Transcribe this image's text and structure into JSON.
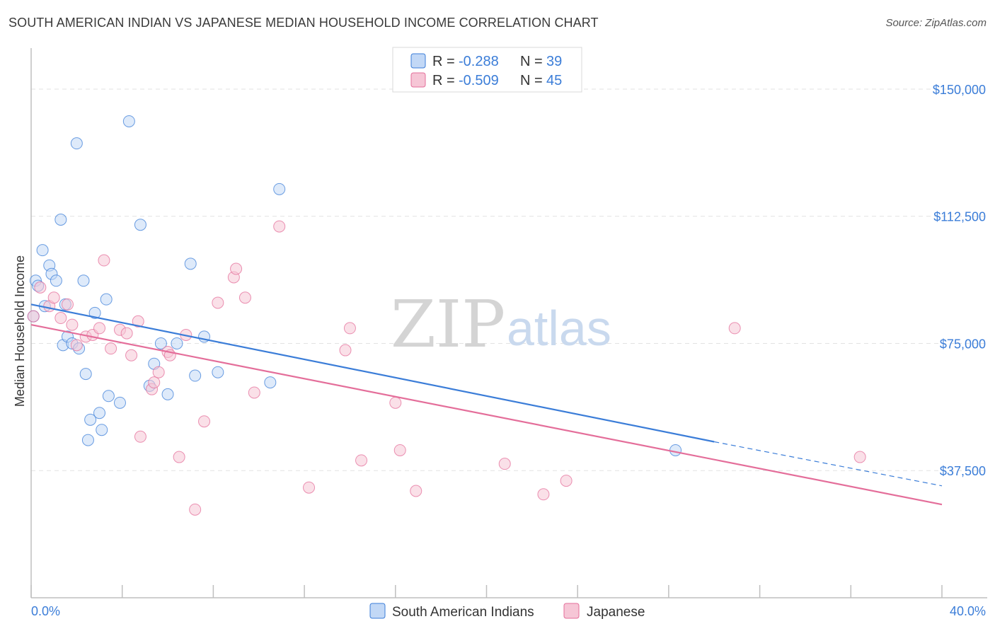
{
  "title": "SOUTH AMERICAN INDIAN VS JAPANESE MEDIAN HOUSEHOLD INCOME CORRELATION CHART",
  "source": "Source: ZipAtlas.com",
  "colors": {
    "blue": "#3b7dd8",
    "blue_fill": "#c2d8f6",
    "pink": "#e46e9a",
    "pink_fill": "#f6c6d6",
    "grid": "#e2e2e2",
    "label": "#3b7dd8"
  },
  "watermark": {
    "zip": "ZIP",
    "atlas": "atlas"
  },
  "legend": {
    "rows": [
      {
        "series": "South American Indians",
        "r_label": "R = ",
        "r_value": "-0.288",
        "n_label": "N = ",
        "n_value": "39"
      },
      {
        "series": "Japanese",
        "r_label": "R = ",
        "r_value": "-0.509",
        "n_label": "N = ",
        "n_value": "45"
      }
    ]
  },
  "chart_data": {
    "type": "scatter",
    "title": "SOUTH AMERICAN INDIAN VS JAPANESE MEDIAN HOUSEHOLD INCOME CORRELATION CHART",
    "xlabel": "",
    "ylabel": "Median Household Income",
    "xlim": [
      0,
      40
    ],
    "ylim": [
      0,
      160000
    ],
    "x_tick_labels": [
      "0.0%",
      "40.0%"
    ],
    "y_ticks": [
      37500,
      75000,
      112500,
      150000
    ],
    "y_tick_labels": [
      "$37,500",
      "$75,000",
      "$112,500",
      "$150,000"
    ],
    "grid": true,
    "legend_position": "top-center",
    "series": [
      {
        "name": "South American Indians",
        "color": "#3b7dd8",
        "fill": "#c2d8f6",
        "points": [
          [
            0.1,
            83000
          ],
          [
            0.2,
            93500
          ],
          [
            0.3,
            92000
          ],
          [
            0.5,
            102500
          ],
          [
            0.6,
            86000
          ],
          [
            0.8,
            98000
          ],
          [
            0.9,
            95500
          ],
          [
            1.1,
            93500
          ],
          [
            1.3,
            111500
          ],
          [
            1.4,
            74500
          ],
          [
            1.6,
            77000
          ],
          [
            1.8,
            75000
          ],
          [
            2.1,
            73500
          ],
          [
            2.3,
            93500
          ],
          [
            2.4,
            66000
          ],
          [
            2.5,
            46500
          ],
          [
            2.6,
            52500
          ],
          [
            2.8,
            84000
          ],
          [
            3.0,
            54500
          ],
          [
            3.1,
            49500
          ],
          [
            3.3,
            88000
          ],
          [
            3.4,
            59500
          ],
          [
            3.9,
            57500
          ],
          [
            4.3,
            140500
          ],
          [
            2.0,
            134000
          ],
          [
            4.8,
            110000
          ],
          [
            5.2,
            62500
          ],
          [
            5.4,
            69000
          ],
          [
            5.7,
            75000
          ],
          [
            6.0,
            60000
          ],
          [
            6.4,
            75000
          ],
          [
            7.0,
            98500
          ],
          [
            7.2,
            65500
          ],
          [
            7.6,
            77000
          ],
          [
            8.2,
            66500
          ],
          [
            10.5,
            63500
          ],
          [
            10.9,
            120500
          ],
          [
            1.5,
            86500
          ],
          [
            28.3,
            43500
          ]
        ],
        "trend": {
          "x": [
            0,
            30.0
          ],
          "y": [
            86500,
            46000
          ],
          "dashed_to": [
            40,
            33000
          ]
        }
      },
      {
        "name": "Japanese",
        "color": "#e46e9a",
        "fill": "#f6c6d6",
        "points": [
          [
            0.1,
            83000
          ],
          [
            0.4,
            91500
          ],
          [
            0.8,
            86000
          ],
          [
            1.0,
            88500
          ],
          [
            1.3,
            82500
          ],
          [
            1.6,
            86500
          ],
          [
            1.8,
            80500
          ],
          [
            2.0,
            74500
          ],
          [
            2.4,
            77000
          ],
          [
            2.7,
            77500
          ],
          [
            3.0,
            79500
          ],
          [
            3.2,
            99500
          ],
          [
            3.5,
            73500
          ],
          [
            3.9,
            79000
          ],
          [
            4.2,
            78000
          ],
          [
            4.4,
            71500
          ],
          [
            4.7,
            81500
          ],
          [
            4.8,
            47500
          ],
          [
            5.3,
            61500
          ],
          [
            5.4,
            63500
          ],
          [
            5.6,
            66500
          ],
          [
            6.0,
            72500
          ],
          [
            6.1,
            71500
          ],
          [
            6.5,
            41500
          ],
          [
            6.8,
            77500
          ],
          [
            7.2,
            26000
          ],
          [
            7.6,
            52000
          ],
          [
            8.2,
            87000
          ],
          [
            8.9,
            94500
          ],
          [
            9.0,
            97000
          ],
          [
            9.4,
            88500
          ],
          [
            9.8,
            60500
          ],
          [
            10.9,
            109500
          ],
          [
            12.2,
            32500
          ],
          [
            13.8,
            73000
          ],
          [
            14.0,
            79500
          ],
          [
            14.5,
            40500
          ],
          [
            16.0,
            57500
          ],
          [
            16.2,
            43500
          ],
          [
            16.9,
            31500
          ],
          [
            20.8,
            39500
          ],
          [
            22.5,
            30500
          ],
          [
            23.5,
            34500
          ],
          [
            30.9,
            79500
          ],
          [
            36.4,
            41500
          ]
        ],
        "trend": {
          "x": [
            0,
            40
          ],
          "y": [
            80500,
            27500
          ]
        }
      }
    ]
  }
}
